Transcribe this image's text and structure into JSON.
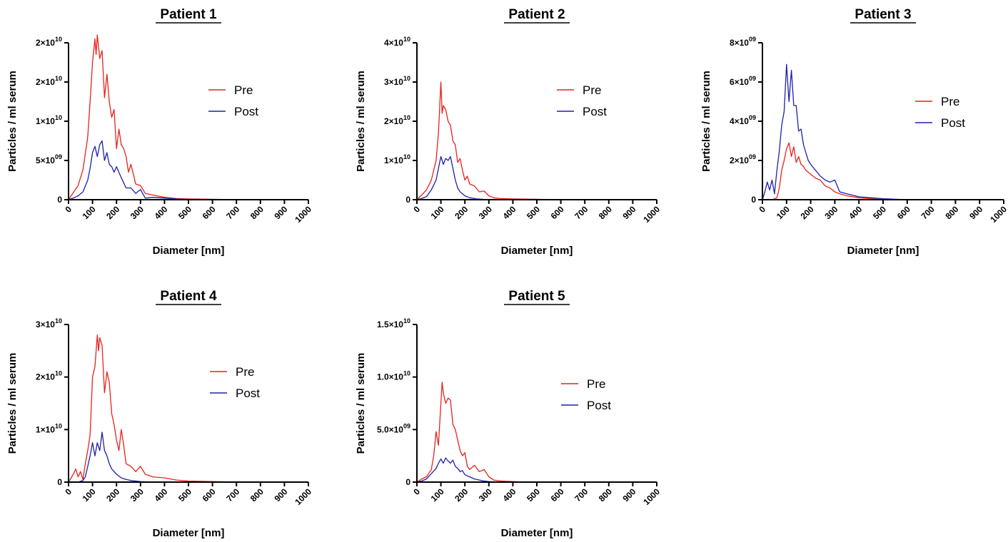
{
  "chart_data": [
    {
      "type": "line",
      "title": "Patient 1",
      "xlabel": "Diameter [nm]",
      "ylabel": "Particles / ml serum",
      "xlim": [
        0,
        1000
      ],
      "ylim": [
        0,
        20000000000
      ],
      "xticks": [
        0,
        100,
        200,
        300,
        400,
        500,
        600,
        700,
        800,
        900,
        1000
      ],
      "xtick_labels": [
        "0",
        "100",
        "200",
        "300",
        "400",
        "500",
        "600",
        "700",
        "800",
        "900",
        "1000"
      ],
      "yticks": [
        0,
        5000000000,
        10000000000,
        15000000000,
        20000000000
      ],
      "ytick_labels": [
        {
          "m": "0",
          "e": ""
        },
        {
          "m": "5×10",
          "e": "09"
        },
        {
          "m": "1×10",
          "e": "10"
        },
        {
          "m": "2×10",
          "e": "10"
        },
        {
          "m": "2×10",
          "e": "10"
        }
      ],
      "legend_position": "right",
      "series": [
        {
          "name": "Pre",
          "color": "#e8221c",
          "x": [
            0,
            20,
            40,
            60,
            80,
            90,
            100,
            110,
            115,
            120,
            130,
            140,
            150,
            160,
            170,
            180,
            190,
            200,
            210,
            220,
            230,
            240,
            250,
            260,
            280,
            300,
            320,
            350,
            400,
            450,
            500,
            600,
            700,
            800,
            900,
            1000
          ],
          "y": [
            0,
            900000000,
            1800000000,
            3800000000,
            8000000000,
            12500000000,
            17500000000,
            20500000000,
            18500000000,
            21000000000,
            18000000000,
            19000000000,
            13000000000,
            16000000000,
            12500000000,
            10500000000,
            11500000000,
            6500000000,
            9000000000,
            7000000000,
            6500000000,
            5500000000,
            3500000000,
            4500000000,
            2000000000,
            1800000000,
            800000000,
            600000000,
            300000000,
            150000000,
            100000000,
            50000000,
            0,
            0,
            0,
            0
          ]
        },
        {
          "name": "Post",
          "color": "#1f20a8",
          "x": [
            0,
            20,
            40,
            60,
            80,
            90,
            100,
            110,
            120,
            130,
            140,
            150,
            160,
            170,
            180,
            190,
            200,
            220,
            240,
            260,
            280,
            300,
            320,
            350,
            400,
            450,
            500,
            600,
            700,
            800,
            900,
            1000
          ],
          "y": [
            0,
            200000000,
            500000000,
            1000000000,
            2500000000,
            4000000000,
            6000000000,
            6800000000,
            5500000000,
            7000000000,
            7500000000,
            5000000000,
            6000000000,
            4500000000,
            4200000000,
            3500000000,
            4200000000,
            2800000000,
            1500000000,
            1500000000,
            800000000,
            1300000000,
            200000000,
            300000000,
            200000000,
            100000000,
            0,
            0,
            0,
            0,
            0,
            0
          ]
        }
      ]
    },
    {
      "type": "line",
      "title": "Patient 2",
      "xlabel": "Diameter [nm]",
      "ylabel": "Particles / ml serum",
      "xlim": [
        0,
        1000
      ],
      "ylim": [
        0,
        40000000000
      ],
      "xticks": [
        0,
        100,
        200,
        300,
        400,
        500,
        600,
        700,
        800,
        900,
        1000
      ],
      "xtick_labels": [
        "0",
        "100",
        "200",
        "300",
        "400",
        "500",
        "600",
        "700",
        "800",
        "900",
        "1000"
      ],
      "yticks": [
        0,
        10000000000,
        20000000000,
        30000000000,
        40000000000
      ],
      "ytick_labels": [
        {
          "m": "0",
          "e": ""
        },
        {
          "m": "1×10",
          "e": "10"
        },
        {
          "m": "2×10",
          "e": "10"
        },
        {
          "m": "3×10",
          "e": "10"
        },
        {
          "m": "4×10",
          "e": "10"
        }
      ],
      "legend_position": "right",
      "series": [
        {
          "name": "Pre",
          "color": "#e8221c",
          "x": [
            0,
            20,
            40,
            60,
            80,
            90,
            100,
            105,
            110,
            120,
            130,
            140,
            150,
            160,
            170,
            180,
            190,
            200,
            210,
            220,
            240,
            260,
            280,
            300,
            320,
            350,
            400,
            500,
            600,
            700,
            800,
            900,
            1000
          ],
          "y": [
            0,
            1200000000,
            2500000000,
            5000000000,
            10000000000,
            17000000000,
            30000000000,
            22000000000,
            24000000000,
            23000000000,
            20000000000,
            19000000000,
            15000000000,
            14000000000,
            9500000000,
            10500000000,
            7500000000,
            5000000000,
            6000000000,
            4000000000,
            3500000000,
            2000000000,
            2200000000,
            1000000000,
            500000000,
            300000000,
            200000000,
            100000000,
            0,
            0,
            0,
            0,
            0
          ]
        },
        {
          "name": "Post",
          "color": "#1f20a8",
          "x": [
            0,
            20,
            40,
            60,
            80,
            90,
            100,
            110,
            120,
            130,
            140,
            150,
            160,
            170,
            180,
            200,
            220,
            250,
            300,
            350,
            400,
            500,
            600,
            700,
            800,
            900,
            1000
          ],
          "y": [
            0,
            300000000,
            800000000,
            2500000000,
            5000000000,
            8000000000,
            11000000000,
            9000000000,
            10500000000,
            10000000000,
            11000000000,
            8000000000,
            5000000000,
            3000000000,
            2000000000,
            1000000000,
            500000000,
            200000000,
            0,
            0,
            0,
            0,
            0,
            0,
            0,
            0,
            0
          ]
        }
      ]
    },
    {
      "type": "line",
      "title": "Patient 3",
      "xlabel": "Diameter [nm]",
      "ylabel": "Particles / ml serum",
      "xlim": [
        0,
        1000
      ],
      "ylim": [
        0,
        8000000000
      ],
      "xticks": [
        0,
        100,
        200,
        300,
        400,
        500,
        600,
        700,
        800,
        900,
        1000
      ],
      "xtick_labels": [
        "0",
        "100",
        "200",
        "300",
        "400",
        "500",
        "600",
        "700",
        "800",
        "900",
        "1000"
      ],
      "yticks": [
        0,
        2000000000,
        4000000000,
        6000000000,
        8000000000
      ],
      "ytick_labels": [
        {
          "m": "0",
          "e": ""
        },
        {
          "m": "2×10",
          "e": "09"
        },
        {
          "m": "4×10",
          "e": "09"
        },
        {
          "m": "6×10",
          "e": "09"
        },
        {
          "m": "8×10",
          "e": "09"
        }
      ],
      "legend_position": "right",
      "series": [
        {
          "name": "Pre",
          "color": "#e8221c",
          "x": [
            0,
            20,
            40,
            60,
            70,
            80,
            90,
            100,
            110,
            120,
            130,
            140,
            150,
            160,
            170,
            180,
            190,
            200,
            220,
            240,
            260,
            280,
            300,
            320,
            350,
            400,
            450,
            500,
            600,
            700,
            800,
            900,
            1000
          ],
          "y": [
            0,
            0,
            0,
            100000000,
            600000000,
            1500000000,
            2000000000,
            2600000000,
            2900000000,
            2200000000,
            2700000000,
            1900000000,
            2200000000,
            1800000000,
            1700000000,
            1500000000,
            1400000000,
            1300000000,
            1100000000,
            1000000000,
            700000000,
            600000000,
            400000000,
            300000000,
            200000000,
            100000000,
            50000000,
            0,
            0,
            0,
            0,
            0,
            0
          ]
        },
        {
          "name": "Post",
          "color": "#1f20a8",
          "x": [
            0,
            10,
            20,
            30,
            40,
            50,
            60,
            70,
            80,
            90,
            100,
            110,
            120,
            130,
            140,
            150,
            160,
            170,
            180,
            190,
            200,
            220,
            240,
            260,
            280,
            300,
            320,
            350,
            400,
            450,
            500,
            600,
            700,
            800,
            900,
            1000
          ],
          "y": [
            0,
            400000000,
            900000000,
            500000000,
            1000000000,
            300000000,
            1500000000,
            2500000000,
            3800000000,
            4500000000,
            6900000000,
            5000000000,
            6600000000,
            4800000000,
            4800000000,
            3500000000,
            3600000000,
            2800000000,
            2400000000,
            2000000000,
            1800000000,
            1500000000,
            1200000000,
            1000000000,
            900000000,
            1000000000,
            400000000,
            300000000,
            150000000,
            100000000,
            50000000,
            0,
            0,
            0,
            0,
            0
          ]
        }
      ]
    },
    {
      "type": "line",
      "title": "Patient 4",
      "xlabel": "Diameter [nm]",
      "ylabel": "Particles / ml serum",
      "xlim": [
        0,
        1000
      ],
      "ylim": [
        0,
        30000000000
      ],
      "xticks": [
        0,
        100,
        200,
        300,
        400,
        500,
        600,
        700,
        800,
        900,
        1000
      ],
      "xtick_labels": [
        "0",
        "100",
        "200",
        "300",
        "400",
        "500",
        "600",
        "700",
        "800",
        "900",
        "1000"
      ],
      "yticks": [
        0,
        10000000000,
        20000000000,
        30000000000
      ],
      "ytick_labels": [
        {
          "m": "0",
          "e": ""
        },
        {
          "m": "1×10",
          "e": "10"
        },
        {
          "m": "2×10",
          "e": "10"
        },
        {
          "m": "3×10",
          "e": "10"
        }
      ],
      "legend_position": "right",
      "series": [
        {
          "name": "Pre",
          "color": "#e8221c",
          "x": [
            0,
            20,
            30,
            40,
            50,
            60,
            70,
            80,
            90,
            100,
            110,
            120,
            125,
            130,
            140,
            150,
            160,
            170,
            180,
            190,
            200,
            210,
            220,
            230,
            240,
            260,
            280,
            300,
            320,
            350,
            400,
            450,
            500,
            600,
            700,
            800,
            900,
            1000
          ],
          "y": [
            0,
            1500000000,
            2500000000,
            1000000000,
            2000000000,
            500000000,
            3500000000,
            6000000000,
            9000000000,
            20000000000,
            22000000000,
            28000000000,
            25000000000,
            27500000000,
            26000000000,
            17000000000,
            21000000000,
            19000000000,
            13000000000,
            11000000000,
            8000000000,
            6000000000,
            10000000000,
            7000000000,
            3500000000,
            3000000000,
            2000000000,
            3000000000,
            1500000000,
            1000000000,
            800000000,
            400000000,
            200000000,
            100000000,
            0,
            0,
            0,
            0
          ]
        },
        {
          "name": "Post",
          "color": "#1f20a8",
          "x": [
            0,
            20,
            40,
            60,
            70,
            80,
            90,
            100,
            110,
            120,
            130,
            140,
            150,
            160,
            170,
            180,
            190,
            200,
            220,
            240,
            260,
            280,
            300,
            350,
            400,
            500,
            600,
            700,
            800,
            900,
            1000
          ],
          "y": [
            0,
            0,
            0,
            300000000,
            1000000000,
            3000000000,
            5000000000,
            7500000000,
            5000000000,
            7500000000,
            6000000000,
            9500000000,
            6000000000,
            5000000000,
            3500000000,
            2500000000,
            2000000000,
            1500000000,
            800000000,
            500000000,
            300000000,
            200000000,
            100000000,
            0,
            0,
            0,
            0,
            0,
            0,
            0,
            0
          ]
        }
      ]
    },
    {
      "type": "line",
      "title": "Patient 5",
      "xlabel": "Diameter [nm]",
      "ylabel": "Particles / ml serum",
      "xlim": [
        0,
        1000
      ],
      "ylim": [
        0,
        15000000000
      ],
      "xticks": [
        0,
        100,
        200,
        300,
        400,
        500,
        600,
        700,
        800,
        900,
        1000
      ],
      "xtick_labels": [
        "0",
        "100",
        "200",
        "300",
        "400",
        "500",
        "600",
        "700",
        "800",
        "900",
        "1000"
      ],
      "yticks": [
        0,
        5000000000,
        10000000000,
        15000000000
      ],
      "ytick_labels": [
        {
          "m": "0",
          "e": ""
        },
        {
          "m": "5.0×10",
          "e": "09"
        },
        {
          "m": "1.0×10",
          "e": "10"
        },
        {
          "m": "1.5×10",
          "e": "10"
        }
      ],
      "legend_position": "right",
      "series": [
        {
          "name": "Pre",
          "color": "#e8221c",
          "x": [
            0,
            20,
            40,
            60,
            70,
            80,
            90,
            100,
            105,
            110,
            120,
            130,
            140,
            150,
            160,
            170,
            180,
            190,
            200,
            210,
            220,
            240,
            260,
            280,
            300,
            320,
            350,
            400,
            450,
            500,
            600,
            700,
            800,
            900,
            1000
          ],
          "y": [
            0,
            300000000,
            500000000,
            1200000000,
            2500000000,
            4800000000,
            3500000000,
            7500000000,
            9500000000,
            8500000000,
            7500000000,
            8000000000,
            7800000000,
            5500000000,
            5000000000,
            4000000000,
            3000000000,
            2500000000,
            2800000000,
            1500000000,
            1200000000,
            1600000000,
            1000000000,
            1200000000,
            500000000,
            200000000,
            100000000,
            50000000,
            0,
            0,
            0,
            0,
            0,
            0,
            0
          ]
        },
        {
          "name": "Post",
          "color": "#1f20a8",
          "x": [
            0,
            20,
            40,
            60,
            80,
            90,
            100,
            110,
            120,
            130,
            140,
            150,
            160,
            170,
            180,
            190,
            200,
            220,
            240,
            260,
            280,
            300,
            350,
            400,
            500,
            600,
            700,
            800,
            900,
            1000
          ],
          "y": [
            0,
            100000000,
            300000000,
            800000000,
            1300000000,
            1800000000,
            2200000000,
            1800000000,
            2300000000,
            2000000000,
            1800000000,
            2100000000,
            1500000000,
            1300000000,
            1000000000,
            1100000000,
            700000000,
            500000000,
            300000000,
            200000000,
            100000000,
            50000000,
            0,
            0,
            0,
            0,
            0,
            0,
            0,
            0
          ]
        }
      ]
    }
  ]
}
